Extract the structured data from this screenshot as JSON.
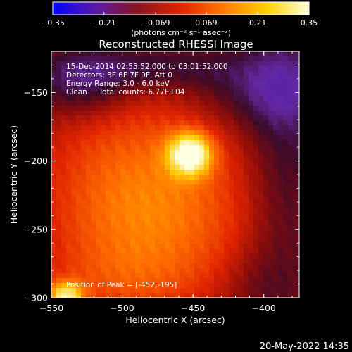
{
  "colorbar": {
    "ticks": [
      "-0.35",
      "-0.21",
      "-0.069",
      "0.069",
      "0.21",
      "0.35"
    ],
    "tick_values": [
      -0.35,
      -0.21,
      -0.069,
      0.069,
      0.21,
      0.35
    ],
    "min": -0.35,
    "max": 0.35,
    "unit_label": "(photons cm⁻² s⁻¹ asec⁻²)",
    "colors": [
      "#0000ff",
      "#5a1aa8",
      "#8a1420",
      "#e02400",
      "#ff7a00",
      "#ffd000",
      "#ffffe0"
    ]
  },
  "chart_data": {
    "type": "heatmap",
    "title": "Reconstructed RHESSI Image",
    "xlabel": "Heliocentric X (arcsec)",
    "ylabel": "Heliocentric Y (arcsec)",
    "xlim": [
      -550,
      -375
    ],
    "ylim": [
      -300,
      -120
    ],
    "x_ticks": [
      -550,
      -500,
      -450,
      -400
    ],
    "y_ticks": [
      -150,
      -200,
      -250,
      -300
    ],
    "x_tick_labels": [
      "−550",
      "−500",
      "−450",
      "−400"
    ],
    "y_tick_labels": [
      "−150",
      "−200",
      "−250",
      "−300"
    ],
    "annotations": [
      "15-Dec-2014 02:55:52.000 to 03:01:52.000",
      "Detectors: 3F 6F 7F 9F, Att 0",
      "Energy Range: 3.0 - 6.0 keV",
      "Clean     Total counts: 6.77E+04"
    ],
    "peak_label": "Position of Peak = [-452,-195]",
    "peak": {
      "x": -452,
      "y": -195,
      "value": 0.35
    },
    "secondary_source": {
      "x": -540,
      "y": -298,
      "value": 0.2
    }
  },
  "footer": {
    "date": "20-May-2022 14:35"
  }
}
